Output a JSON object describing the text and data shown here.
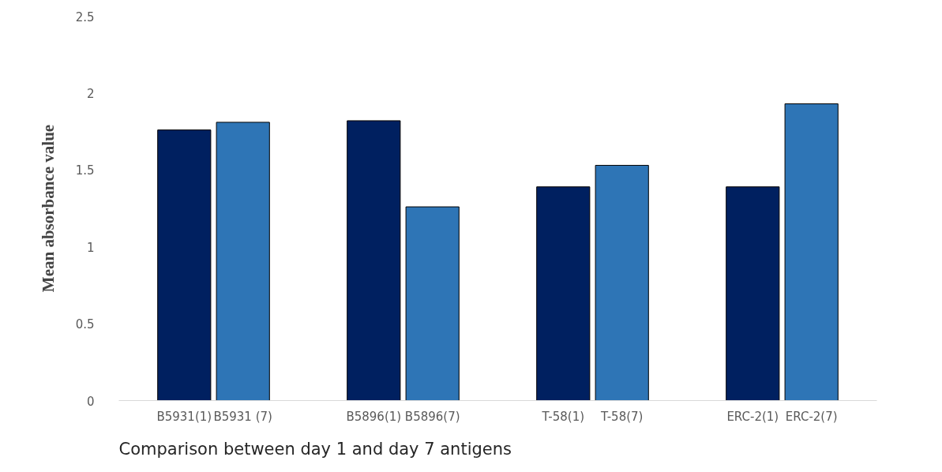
{
  "chart_data": {
    "type": "bar",
    "xlabel": "Comparison between day 1 and day 7 antigens",
    "ylabel": "Mean absorbance value",
    "categories": [
      "B5931(1)",
      "B5931 (7)",
      "B5896(1)",
      "B5896(7)",
      "T-58(1)",
      "T-58(7)",
      "ERC-2(1)",
      "ERC-2(7)"
    ],
    "values": [
      1.76,
      1.81,
      1.82,
      1.26,
      1.39,
      1.53,
      1.39,
      1.93
    ],
    "colors": [
      "#002060",
      "#2e75b6",
      "#002060",
      "#2e75b6",
      "#002060",
      "#2e75b6",
      "#002060",
      "#2e75b6"
    ],
    "ylim": [
      0,
      2.5
    ],
    "yticks": [
      0,
      0.5,
      1,
      1.5,
      2,
      2.5
    ],
    "grid": false
  }
}
